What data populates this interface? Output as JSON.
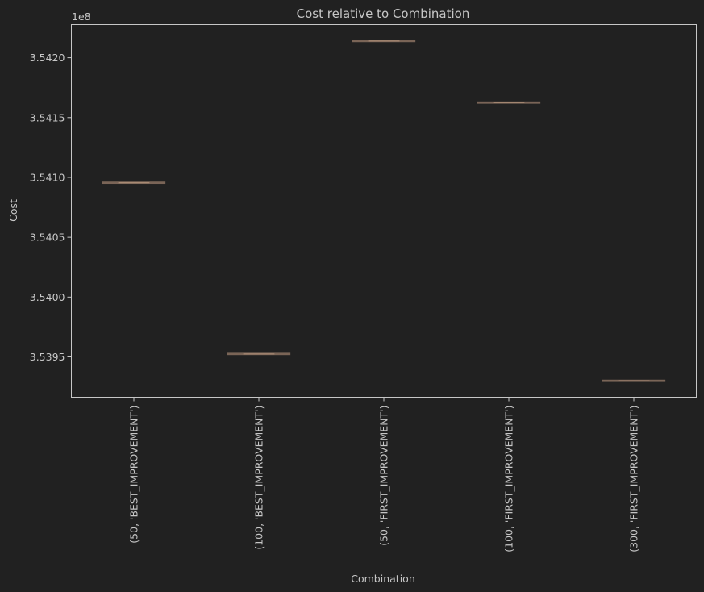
{
  "chart_data": {
    "type": "box",
    "title": "Cost relative to Combination",
    "xlabel": "Combination",
    "ylabel": "Cost",
    "y_offset_label": "1e8",
    "y_scale": 100000000,
    "ylim": [
      353916300,
      354227700
    ],
    "yticks": [
      3.5395,
      3.54,
      3.5405,
      3.541,
      3.5415,
      3.542
    ],
    "ytick_labels": [
      "3.5395",
      "3.5400",
      "3.5405",
      "3.5410",
      "3.5415",
      "3.5420"
    ],
    "categories": [
      "(50, 'BEST_IMPROVEMENT')",
      "(100, 'BEST_IMPROVEMENT')",
      "(50, 'FIRST_IMPROVEMENT')",
      "(100, 'FIRST_IMPROVEMENT')",
      "(300, 'FIRST_IMPROVEMENT')"
    ],
    "values": [
      354095500,
      353952500,
      354214000,
      354162500,
      353930000
    ],
    "grid": false,
    "colors": {
      "background": "#212121",
      "axes": "#c7c7c7",
      "text": "#c7c7c7",
      "box": "#7a6557",
      "median": "#a88a73"
    }
  }
}
